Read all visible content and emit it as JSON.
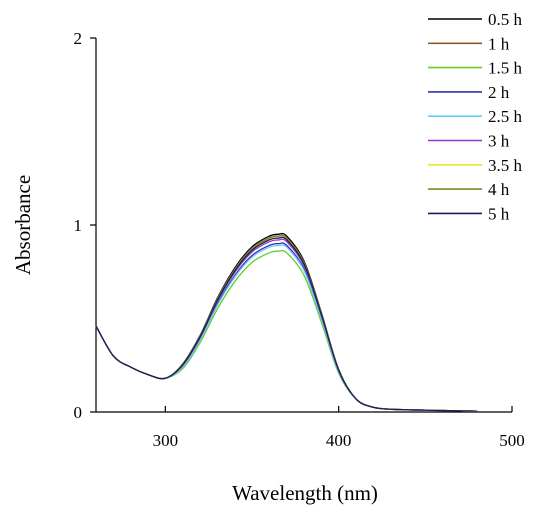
{
  "chart_data": {
    "type": "line",
    "title": "",
    "xlabel": "Wavelength (nm)",
    "ylabel": "Absorbance",
    "xlim": [
      260,
      500
    ],
    "ylim": [
      0,
      2
    ],
    "x_ticks": [
      "300",
      "400",
      "500"
    ],
    "y_ticks": [
      "0",
      "1",
      "2"
    ],
    "grid": false,
    "legend_position": "top-right",
    "x": [
      260,
      270,
      280,
      290,
      300,
      310,
      320,
      330,
      340,
      350,
      360,
      365,
      370,
      380,
      390,
      400,
      410,
      420,
      430,
      440,
      450,
      460,
      470,
      480
    ],
    "series": [
      {
        "name": "0.5 h",
        "color": "#000000",
        "peak": 0.95
      },
      {
        "name": "1 h",
        "color": "#8b5a2b",
        "peak": 0.94
      },
      {
        "name": "1.5 h",
        "color": "#66cc33",
        "peak": 0.86
      },
      {
        "name": "2 h",
        "color": "#3333aa",
        "peak": 0.9
      },
      {
        "name": "2.5 h",
        "color": "#66ccff",
        "peak": 0.89
      },
      {
        "name": "3 h",
        "color": "#9933cc",
        "peak": 0.92
      },
      {
        "name": "3.5 h",
        "color": "#e6e62e",
        "peak": 0.93
      },
      {
        "name": "4 h",
        "color": "#7a8c1e",
        "peak": 0.94
      },
      {
        "name": "5 h",
        "color": "#1a1a66",
        "peak": 0.93
      }
    ],
    "base_profile": [
      0.46,
      0.3,
      0.24,
      0.2,
      0.18,
      0.27,
      0.43,
      0.64,
      0.81,
      0.93,
      0.99,
      1.0,
      0.99,
      0.85,
      0.56,
      0.24,
      0.07,
      0.025,
      0.015,
      0.012,
      0.01,
      0.008,
      0.006,
      0.005
    ]
  }
}
